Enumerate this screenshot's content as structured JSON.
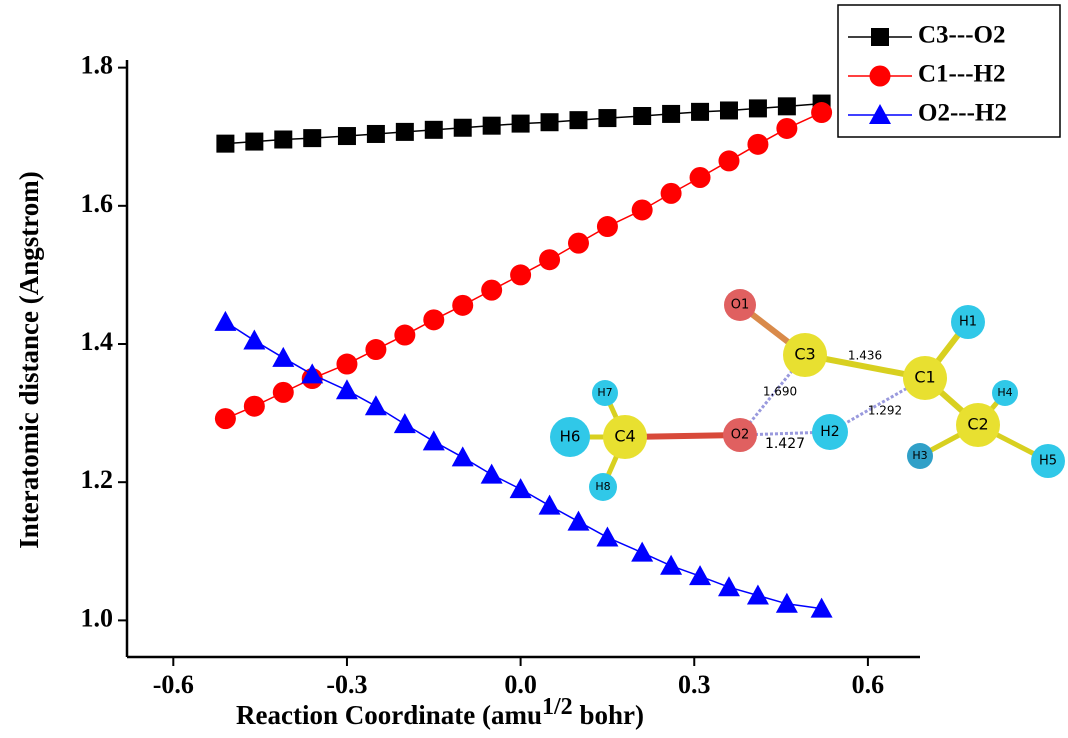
{
  "chart_data": {
    "type": "line",
    "x_label": "Reaction Coordinate (amu",
    "x_label_sup": "1/2",
    "x_label_end": " bohr)",
    "y_label": "Interatomic distance (Angstrom)",
    "x": [
      -0.51,
      -0.46,
      -0.41,
      -0.36,
      -0.3,
      -0.25,
      -0.2,
      -0.15,
      -0.1,
      -0.05,
      0.0,
      0.05,
      0.1,
      0.15,
      0.21,
      0.26,
      0.31,
      0.36,
      0.41,
      0.46,
      0.52
    ],
    "series": [
      {
        "name": "C3---O2",
        "color": "#000000",
        "marker": "square",
        "values": [
          1.69,
          1.693,
          1.696,
          1.698,
          1.701,
          1.704,
          1.707,
          1.71,
          1.713,
          1.716,
          1.719,
          1.721,
          1.724,
          1.727,
          1.73,
          1.733,
          1.736,
          1.738,
          1.741,
          1.744,
          1.748
        ]
      },
      {
        "name": "C1---H2",
        "color": "#ff0000",
        "marker": "circle",
        "values": [
          1.292,
          1.31,
          1.33,
          1.35,
          1.371,
          1.392,
          1.413,
          1.435,
          1.456,
          1.478,
          1.5,
          1.522,
          1.546,
          1.57,
          1.594,
          1.618,
          1.641,
          1.665,
          1.689,
          1.712,
          1.735
        ]
      },
      {
        "name": "O2---H2",
        "color": "#0000ff",
        "marker": "triangle",
        "values": [
          1.432,
          1.405,
          1.38,
          1.356,
          1.333,
          1.31,
          1.284,
          1.259,
          1.236,
          1.211,
          1.19,
          1.166,
          1.143,
          1.12,
          1.098,
          1.079,
          1.064,
          1.048,
          1.036,
          1.024,
          1.017
        ]
      }
    ],
    "xlim": [
      -0.68,
      0.69
    ],
    "ylim": [
      0.947,
      1.84
    ],
    "xticks": [
      -0.6,
      -0.3,
      {
        "value": 0,
        "label": "0.0"
      },
      0.3,
      0.6
    ],
    "yticks": [
      {
        "value": 1.0,
        "label": "1.0"
      },
      1.2,
      1.4,
      1.6,
      1.8
    ],
    "legend": "top-right"
  },
  "molecule": {
    "atoms": [
      "O1",
      "C3",
      "C1",
      "H1",
      "H4",
      "C2",
      "H3",
      "H5",
      "H7",
      "H6",
      "C4",
      "H8",
      "O2",
      "H2"
    ],
    "bond_labels": [
      "1.436",
      "1.690",
      "1.292",
      "1.427"
    ]
  }
}
